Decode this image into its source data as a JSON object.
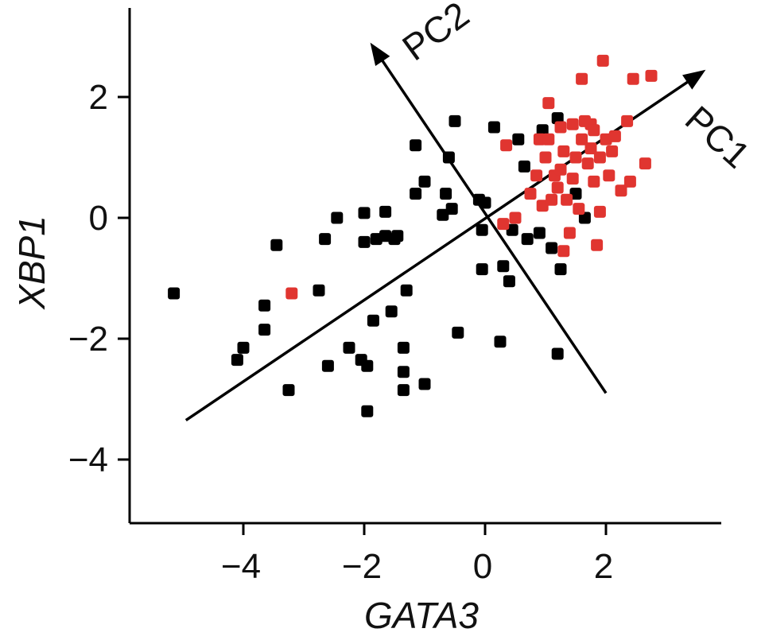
{
  "chart_data": {
    "type": "scatter",
    "xlabel": "GATA3",
    "ylabel": "XBP1",
    "xlim": [
      -4.7,
      3.9
    ],
    "ylim": [
      -5.0,
      3.5
    ],
    "x_ticks": [
      -4,
      -2,
      0,
      2
    ],
    "y_ticks": [
      -4,
      -2,
      0,
      2
    ],
    "x_tick_labels": [
      "−4",
      "−2",
      "0",
      "2"
    ],
    "y_tick_labels": [
      "−4",
      "−2",
      "0",
      "2"
    ],
    "grid": false,
    "colors": {
      "black_group": "#000000",
      "red_group": "#e03530",
      "axes": "#000000"
    },
    "series": [
      {
        "color": "#000000",
        "points": [
          [
            -5.15,
            -1.25
          ],
          [
            -4.1,
            -2.35
          ],
          [
            -4.0,
            -2.15
          ],
          [
            -3.65,
            -1.45
          ],
          [
            -3.65,
            -1.85
          ],
          [
            -3.45,
            -0.45
          ],
          [
            -3.25,
            -2.85
          ],
          [
            -2.75,
            -1.2
          ],
          [
            -2.65,
            -0.35
          ],
          [
            -2.6,
            -2.45
          ],
          [
            -2.45,
            0.0
          ],
          [
            -2.25,
            -2.15
          ],
          [
            -2.05,
            -2.35
          ],
          [
            -2.0,
            0.08
          ],
          [
            -2.0,
            -0.4
          ],
          [
            -1.95,
            -2.45
          ],
          [
            -1.95,
            -3.2
          ],
          [
            -1.85,
            -1.7
          ],
          [
            -1.8,
            -0.35
          ],
          [
            -1.65,
            0.1
          ],
          [
            -1.65,
            -0.3
          ],
          [
            -1.55,
            -1.55
          ],
          [
            -1.5,
            -0.35
          ],
          [
            -1.45,
            -0.3
          ],
          [
            -1.35,
            -2.15
          ],
          [
            -1.35,
            -2.55
          ],
          [
            -1.35,
            -2.85
          ],
          [
            -1.3,
            -1.2
          ],
          [
            -1.15,
            1.2
          ],
          [
            -1.15,
            0.4
          ],
          [
            -1.0,
            0.6
          ],
          [
            -1.0,
            -2.75
          ],
          [
            -0.7,
            0.05
          ],
          [
            -0.65,
            0.4
          ],
          [
            -0.6,
            1.0
          ],
          [
            -0.55,
            0.15
          ],
          [
            -0.5,
            1.6
          ],
          [
            -0.45,
            -1.9
          ],
          [
            -0.1,
            0.3
          ],
          [
            -0.05,
            -0.2
          ],
          [
            -0.05,
            -0.85
          ],
          [
            0.0,
            0.25
          ],
          [
            0.15,
            1.5
          ],
          [
            0.25,
            -2.05
          ],
          [
            0.3,
            -0.8
          ],
          [
            0.4,
            -1.05
          ],
          [
            0.45,
            -0.2
          ],
          [
            0.55,
            1.3
          ],
          [
            0.65,
            0.85
          ],
          [
            0.7,
            -0.35
          ],
          [
            0.9,
            -0.25
          ],
          [
            0.95,
            1.45
          ],
          [
            1.1,
            -0.5
          ],
          [
            1.2,
            1.65
          ],
          [
            1.2,
            -2.25
          ],
          [
            1.25,
            -0.85
          ],
          [
            1.5,
            0.4
          ],
          [
            1.65,
            0.0
          ]
        ]
      },
      {
        "color": "#e03530",
        "points": [
          [
            -3.2,
            -1.25
          ],
          [
            0.3,
            -0.1
          ],
          [
            0.35,
            1.2
          ],
          [
            0.5,
            0.0
          ],
          [
            0.75,
            0.4
          ],
          [
            0.85,
            0.7
          ],
          [
            0.9,
            1.3
          ],
          [
            0.95,
            0.2
          ],
          [
            1.0,
            1.0
          ],
          [
            1.05,
            1.3
          ],
          [
            1.05,
            1.9
          ],
          [
            1.1,
            0.3
          ],
          [
            1.15,
            0.7
          ],
          [
            1.2,
            0.5
          ],
          [
            1.25,
            1.5
          ],
          [
            1.25,
            0.8
          ],
          [
            1.3,
            -0.55
          ],
          [
            1.3,
            1.1
          ],
          [
            1.35,
            0.3
          ],
          [
            1.4,
            -0.25
          ],
          [
            1.45,
            1.55
          ],
          [
            1.45,
            0.65
          ],
          [
            1.5,
            1.0
          ],
          [
            1.55,
            0.15
          ],
          [
            1.6,
            1.3
          ],
          [
            1.65,
            1.6
          ],
          [
            1.7,
            0.9
          ],
          [
            1.75,
            1.55
          ],
          [
            1.75,
            1.15
          ],
          [
            1.8,
            0.6
          ],
          [
            1.8,
            1.45
          ],
          [
            1.85,
            -0.45
          ],
          [
            1.9,
            1.0
          ],
          [
            1.9,
            0.1
          ],
          [
            1.95,
            2.6
          ],
          [
            2.0,
            1.3
          ],
          [
            2.05,
            0.7
          ],
          [
            2.1,
            1.1
          ],
          [
            2.15,
            1.35
          ],
          [
            2.25,
            0.45
          ],
          [
            2.35,
            1.6
          ],
          [
            2.4,
            0.6
          ],
          [
            2.45,
            2.3
          ],
          [
            2.65,
            0.9
          ],
          [
            2.75,
            2.35
          ],
          [
            1.6,
            2.3
          ]
        ]
      }
    ],
    "arrows": [
      {
        "label": "PC1",
        "from": [
          -4.95,
          -3.35
        ],
        "to": [
          3.65,
          2.45
        ]
      },
      {
        "label": "PC2",
        "from": [
          2.0,
          -2.9
        ],
        "to": [
          -1.9,
          2.9
        ]
      }
    ]
  }
}
